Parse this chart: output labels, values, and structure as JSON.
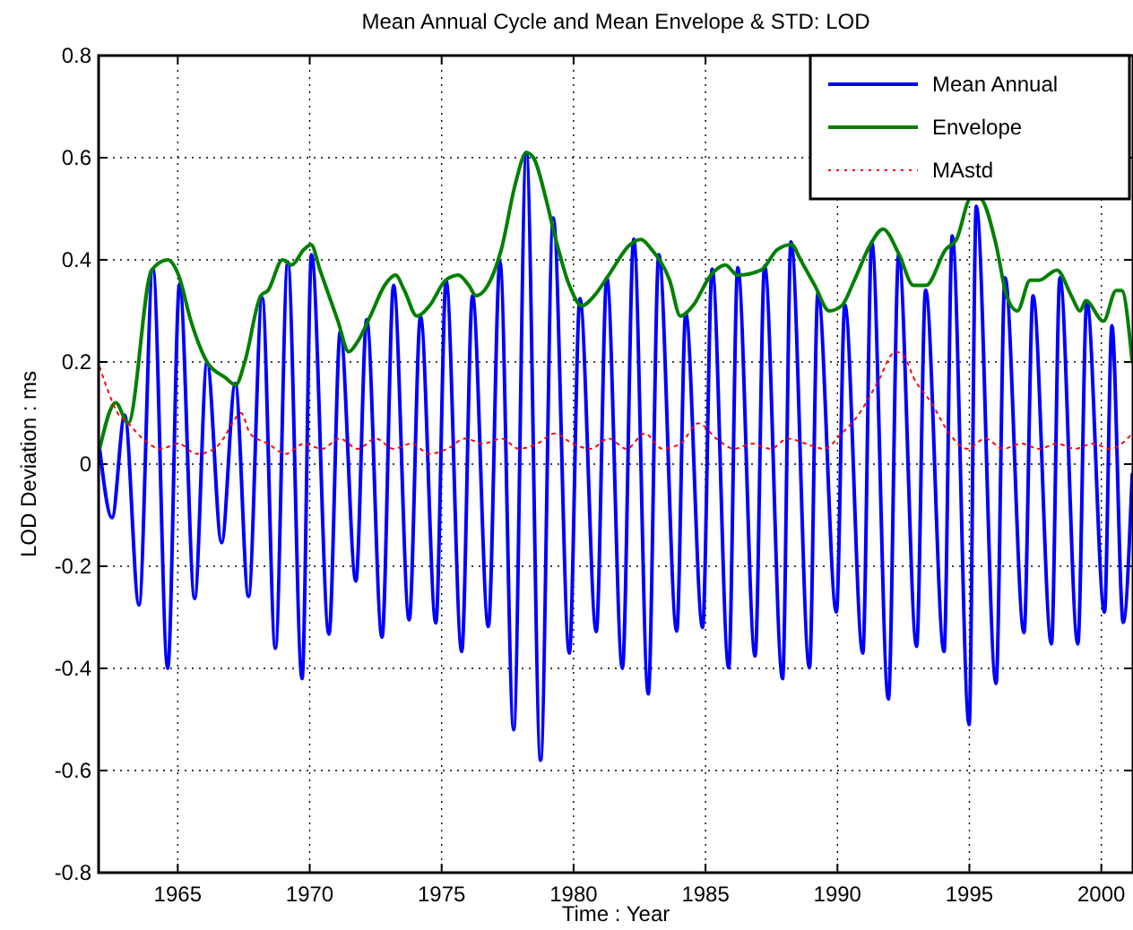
{
  "chart_data": {
    "type": "line",
    "title": "Mean Annual Cycle and Mean Envelope & STD: LOD",
    "xlabel": "Time : Year",
    "ylabel": "LOD Deviation : ms",
    "xlim": [
      1962.0,
      2001.2
    ],
    "ylim": [
      -0.8,
      0.8
    ],
    "xticks": [
      1965,
      1970,
      1975,
      1980,
      1985,
      1990,
      1995,
      2000
    ],
    "yticks": [
      -0.8,
      -0.6,
      -0.4,
      -0.2,
      0,
      0.2,
      0.4,
      0.6,
      0.8
    ],
    "grid": true,
    "legend": "top right",
    "series": [
      {
        "name": "Mean Annual",
        "color": "#0000ff",
        "line_style": "solid",
        "x": [
          1962.04,
          1962.51,
          1962.99,
          1963.53,
          1964.06,
          1964.62,
          1965.07,
          1965.64,
          1966.11,
          1966.66,
          1967.18,
          1967.68,
          1968.2,
          1968.7,
          1969.17,
          1969.71,
          1970.07,
          1970.73,
          1971.16,
          1971.75,
          1972.16,
          1972.74,
          1973.18,
          1973.77,
          1974.2,
          1974.78,
          1975.17,
          1975.76,
          1976.17,
          1976.77,
          1977.21,
          1977.73,
          1978.21,
          1978.75,
          1979.23,
          1979.84,
          1980.24,
          1980.86,
          1981.26,
          1981.85,
          1982.28,
          1982.83,
          1983.23,
          1983.91,
          1984.25,
          1984.89,
          1985.25,
          1985.88,
          1986.22,
          1986.88,
          1987.24,
          1987.92,
          1988.24,
          1988.94,
          1989.26,
          1989.96,
          1990.28,
          1990.96,
          1991.3,
          1991.93,
          1992.32,
          1993.0,
          1993.34,
          1994.04,
          1994.35,
          1994.99,
          1995.26,
          1996.01,
          1996.35,
          1997.07,
          1997.41,
          1998.11,
          1998.43,
          1999.11,
          1999.45,
          2000.12,
          2000.4,
          2000.83,
          2001.17
        ],
        "values": [
          0.03,
          -0.105,
          0.096,
          -0.276,
          0.382,
          -0.4,
          0.353,
          -0.263,
          0.2,
          -0.154,
          0.158,
          -0.259,
          0.326,
          -0.361,
          0.396,
          -0.42,
          0.41,
          -0.333,
          0.26,
          -0.229,
          0.283,
          -0.339,
          0.35,
          -0.305,
          0.289,
          -0.311,
          0.359,
          -0.367,
          0.33,
          -0.318,
          0.396,
          -0.52,
          0.61,
          -0.58,
          0.482,
          -0.37,
          0.324,
          -0.328,
          0.365,
          -0.4,
          0.441,
          -0.45,
          0.41,
          -0.327,
          0.295,
          -0.32,
          0.382,
          -0.399,
          0.385,
          -0.376,
          0.388,
          -0.42,
          0.435,
          -0.399,
          0.336,
          -0.29,
          0.312,
          -0.37,
          0.435,
          -0.46,
          0.41,
          -0.357,
          0.341,
          -0.367,
          0.447,
          -0.51,
          0.505,
          -0.43,
          0.365,
          -0.33,
          0.33,
          -0.352,
          0.365,
          -0.352,
          0.318,
          -0.29,
          0.271,
          -0.31,
          -0.02
        ]
      },
      {
        "name": "Envelope",
        "color": "#008000",
        "line_style": "solid",
        "x": [
          1962.04,
          1962.65,
          1963.12,
          1964.01,
          1964.62,
          1965.03,
          1965.5,
          1966.11,
          1966.79,
          1967.2,
          1967.54,
          1968.15,
          1968.42,
          1968.97,
          1969.31,
          1969.78,
          1970.05,
          1970.39,
          1971.07,
          1971.48,
          1971.82,
          1972.3,
          1972.84,
          1973.25,
          1973.59,
          1974.06,
          1974.54,
          1975.15,
          1975.63,
          1976.03,
          1976.3,
          1976.85,
          1977.26,
          1977.8,
          1978.21,
          1978.48,
          1978.95,
          1979.23,
          1979.84,
          1980.31,
          1980.79,
          1981.33,
          1982.15,
          1982.55,
          1982.96,
          1983.64,
          1984.05,
          1984.52,
          1985.2,
          1985.75,
          1986.22,
          1987.11,
          1987.72,
          1988.26,
          1988.6,
          1989.14,
          1989.69,
          1990.16,
          1990.64,
          1991.25,
          1991.73,
          1992.34,
          1992.88,
          1993.36,
          1994.1,
          1994.51,
          1995.05,
          1995.39,
          1996.01,
          1996.41,
          1996.82,
          1997.3,
          1997.64,
          1998.32,
          1998.86,
          1999.2,
          1999.41,
          2000.08,
          2000.56,
          2000.77,
          2001.17
        ],
        "values": [
          0.03,
          0.12,
          0.08,
          0.38,
          0.4,
          0.37,
          0.28,
          0.2,
          0.17,
          0.155,
          0.2,
          0.33,
          0.34,
          0.4,
          0.39,
          0.42,
          0.43,
          0.38,
          0.28,
          0.22,
          0.24,
          0.29,
          0.35,
          0.37,
          0.34,
          0.29,
          0.31,
          0.36,
          0.37,
          0.35,
          0.33,
          0.36,
          0.42,
          0.55,
          0.61,
          0.6,
          0.52,
          0.46,
          0.35,
          0.31,
          0.33,
          0.37,
          0.43,
          0.44,
          0.42,
          0.36,
          0.29,
          0.31,
          0.37,
          0.39,
          0.37,
          0.38,
          0.42,
          0.43,
          0.4,
          0.35,
          0.3,
          0.31,
          0.36,
          0.43,
          0.46,
          0.41,
          0.35,
          0.35,
          0.42,
          0.44,
          0.52,
          0.52,
          0.43,
          0.33,
          0.3,
          0.36,
          0.36,
          0.38,
          0.33,
          0.3,
          0.32,
          0.28,
          0.34,
          0.34,
          0.2
        ]
      },
      {
        "name": "MAstd",
        "color": "#ff0000",
        "line_style": "dotted",
        "x": [
          1962.04,
          1962.31,
          1962.72,
          1963.12,
          1963.67,
          1964.35,
          1965.03,
          1965.71,
          1966.39,
          1966.73,
          1967.07,
          1967.4,
          1967.74,
          1968.42,
          1969.1,
          1969.78,
          1970.46,
          1971.14,
          1971.82,
          1972.5,
          1973.18,
          1973.86,
          1974.54,
          1975.22,
          1975.9,
          1976.58,
          1977.26,
          1977.94,
          1978.62,
          1979.29,
          1979.97,
          1980.65,
          1981.33,
          1982.01,
          1982.69,
          1983.37,
          1984.05,
          1984.73,
          1985.41,
          1986.09,
          1986.77,
          1987.45,
          1988.13,
          1988.8,
          1989.48,
          1990.16,
          1990.84,
          1991.52,
          1992.2,
          1992.54,
          1992.88,
          1993.56,
          1994.24,
          1994.92,
          1995.6,
          1996.28,
          1996.96,
          1997.64,
          1998.32,
          1999.0,
          1999.67,
          2000.35,
          2001.17
        ],
        "values": [
          0.19,
          0.15,
          0.1,
          0.08,
          0.05,
          0.03,
          0.04,
          0.02,
          0.03,
          0.05,
          0.08,
          0.1,
          0.06,
          0.04,
          0.02,
          0.04,
          0.03,
          0.05,
          0.03,
          0.05,
          0.03,
          0.04,
          0.02,
          0.03,
          0.05,
          0.04,
          0.05,
          0.03,
          0.04,
          0.06,
          0.04,
          0.03,
          0.05,
          0.03,
          0.06,
          0.03,
          0.04,
          0.08,
          0.05,
          0.03,
          0.04,
          0.03,
          0.05,
          0.04,
          0.03,
          0.06,
          0.1,
          0.16,
          0.22,
          0.21,
          0.17,
          0.12,
          0.06,
          0.03,
          0.05,
          0.03,
          0.04,
          0.03,
          0.04,
          0.03,
          0.04,
          0.03,
          0.06
        ]
      }
    ]
  }
}
